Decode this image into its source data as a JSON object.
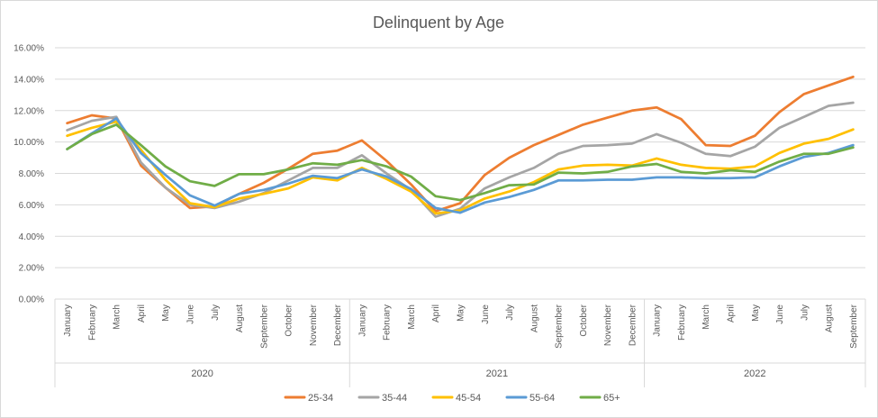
{
  "chart_data": {
    "type": "line",
    "title": "Delinquent by Age",
    "xlabel": "",
    "ylabel": "",
    "ylim": [
      0,
      16
    ],
    "y_ticks": [
      "0.00%",
      "2.00%",
      "4.00%",
      "6.00%",
      "8.00%",
      "10.00%",
      "12.00%",
      "14.00%",
      "16.00%"
    ],
    "categories": [
      "January",
      "February",
      "March",
      "April",
      "May",
      "June",
      "July",
      "August",
      "September",
      "October",
      "November",
      "December",
      "January",
      "February",
      "March",
      "April",
      "May",
      "June",
      "July",
      "August",
      "September",
      "October",
      "November",
      "December",
      "January",
      "February",
      "March",
      "April",
      "May",
      "June",
      "July",
      "August",
      "September"
    ],
    "years": [
      {
        "label": "2020",
        "count": 12
      },
      {
        "label": "2021",
        "count": 12
      },
      {
        "label": "2022",
        "count": 9
      }
    ],
    "grid": "horizontal",
    "legend_position": "bottom",
    "series": [
      {
        "name": "25-34",
        "color": "#ED7D31",
        "values": [
          11.2,
          11.7,
          11.5,
          8.5,
          7.1,
          5.8,
          5.9,
          6.7,
          7.4,
          8.3,
          9.25,
          9.45,
          10.1,
          8.8,
          7.3,
          5.6,
          6.1,
          7.9,
          9.0,
          9.8,
          10.45,
          11.1,
          11.55,
          12.0,
          12.2,
          11.45,
          9.8,
          9.75,
          10.4,
          11.9,
          13.05,
          13.6,
          14.15
        ]
      },
      {
        "name": "35-44",
        "color": "#A5A5A5",
        "values": [
          10.75,
          11.35,
          11.6,
          8.7,
          7.1,
          6.0,
          5.8,
          6.2,
          6.75,
          7.55,
          8.35,
          8.35,
          9.15,
          8.0,
          6.95,
          5.25,
          5.75,
          7.05,
          7.75,
          8.35,
          9.25,
          9.75,
          9.8,
          9.9,
          10.5,
          9.95,
          9.25,
          9.1,
          9.7,
          10.9,
          11.6,
          12.3,
          12.5
        ]
      },
      {
        "name": "45-54",
        "color": "#FFC000",
        "values": [
          10.4,
          10.9,
          11.3,
          9.5,
          7.6,
          6.1,
          5.85,
          6.4,
          6.7,
          7.05,
          7.75,
          7.55,
          8.35,
          7.65,
          6.85,
          5.45,
          5.65,
          6.4,
          6.85,
          7.45,
          8.25,
          8.5,
          8.55,
          8.5,
          8.95,
          8.55,
          8.35,
          8.3,
          8.45,
          9.3,
          9.9,
          10.2,
          10.8
        ]
      },
      {
        "name": "55-64",
        "color": "#5B9BD5",
        "values": [
          9.55,
          10.55,
          11.5,
          9.3,
          7.9,
          6.6,
          5.95,
          6.7,
          6.95,
          7.35,
          7.85,
          7.7,
          8.25,
          7.8,
          7.0,
          5.8,
          5.5,
          6.15,
          6.5,
          6.95,
          7.55,
          7.55,
          7.6,
          7.6,
          7.75,
          7.75,
          7.7,
          7.7,
          7.75,
          8.45,
          9.05,
          9.3,
          9.8
        ]
      },
      {
        "name": "65+",
        "color": "#70AD47",
        "values": [
          9.55,
          10.5,
          11.1,
          9.8,
          8.45,
          7.5,
          7.2,
          7.95,
          7.95,
          8.25,
          8.65,
          8.55,
          8.85,
          8.45,
          7.8,
          6.55,
          6.3,
          6.75,
          7.25,
          7.3,
          8.05,
          8.0,
          8.1,
          8.45,
          8.6,
          8.1,
          8.0,
          8.2,
          8.1,
          8.75,
          9.25,
          9.25,
          9.65
        ]
      }
    ]
  }
}
